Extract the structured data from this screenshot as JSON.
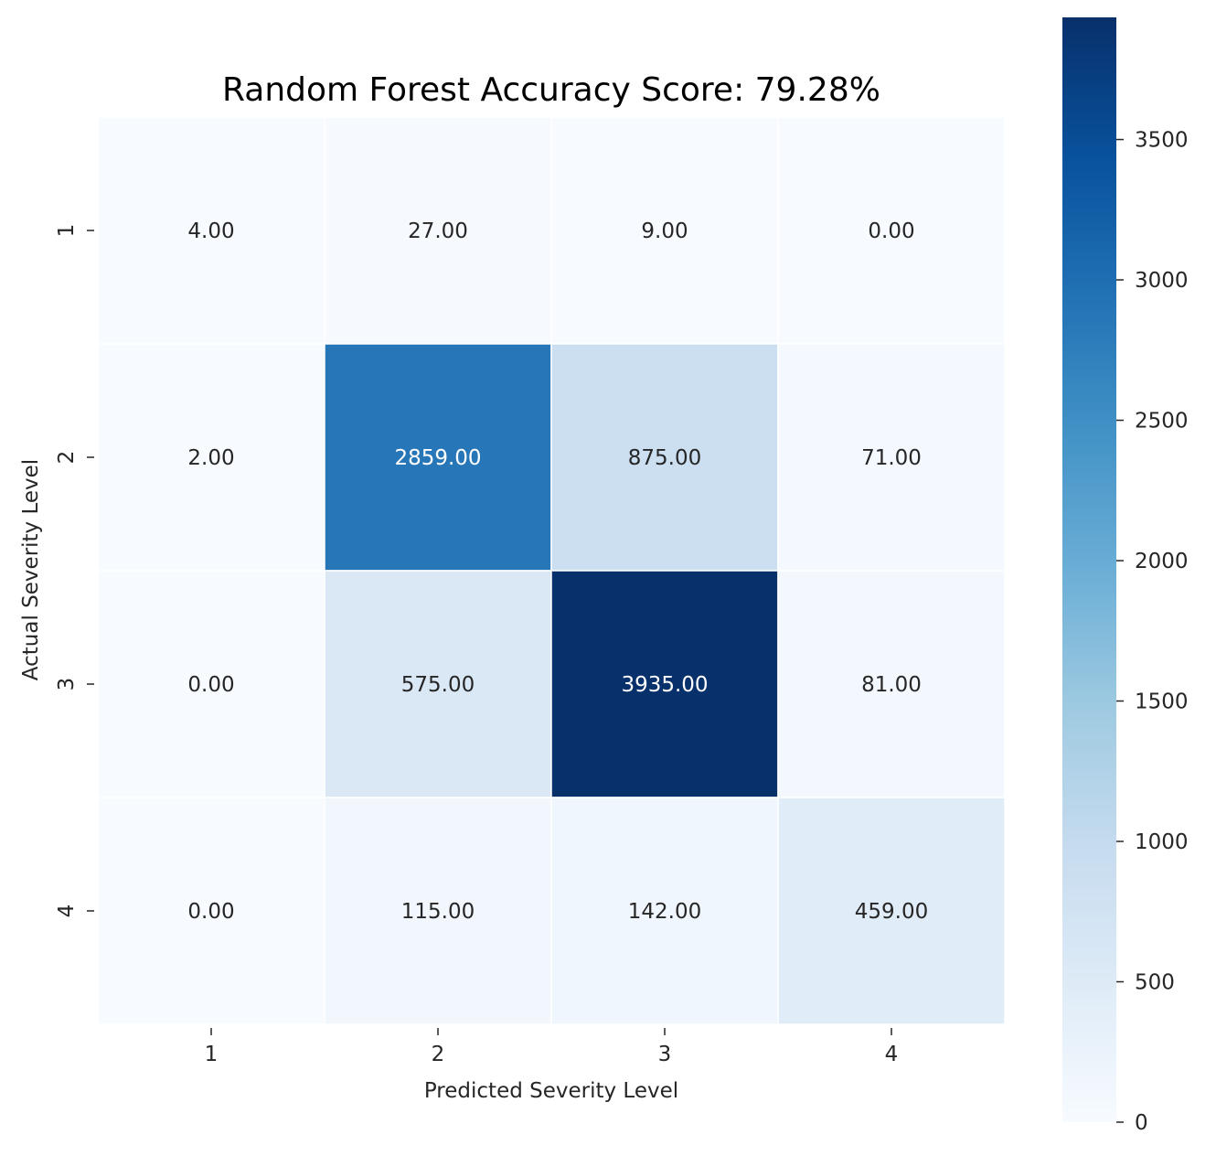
{
  "chart_data": {
    "type": "heatmap",
    "title": "Random Forest Accuracy Score: 79.28%",
    "xlabel": "Predicted Severity Level",
    "ylabel": "Actual Severity Level",
    "x_categories": [
      "1",
      "2",
      "3",
      "4"
    ],
    "y_categories": [
      "1",
      "2",
      "3",
      "4"
    ],
    "values": [
      [
        4,
        27,
        9,
        0
      ],
      [
        2,
        2859,
        875,
        71
      ],
      [
        0,
        575,
        3935,
        81
      ],
      [
        0,
        115,
        142,
        459
      ]
    ],
    "cell_labels": [
      [
        "4.00",
        "27.00",
        "9.00",
        "0.00"
      ],
      [
        "2.00",
        "2859.00",
        "875.00",
        "71.00"
      ],
      [
        "0.00",
        "575.00",
        "3935.00",
        "81.00"
      ],
      [
        "0.00",
        "115.00",
        "142.00",
        "459.00"
      ]
    ],
    "colormap": "Blues",
    "color_range": [
      0,
      3935
    ],
    "colorbar_ticks": [
      0,
      500,
      1000,
      1500,
      2000,
      2500,
      3000,
      3500
    ],
    "colorbar_tick_labels": [
      "0",
      "500",
      "1000",
      "1500",
      "2000",
      "2500",
      "3000",
      "3500"
    ],
    "cell_border_color": "#ffffff",
    "light_text_color": "#ffffff",
    "dark_text_color": "#262626"
  }
}
